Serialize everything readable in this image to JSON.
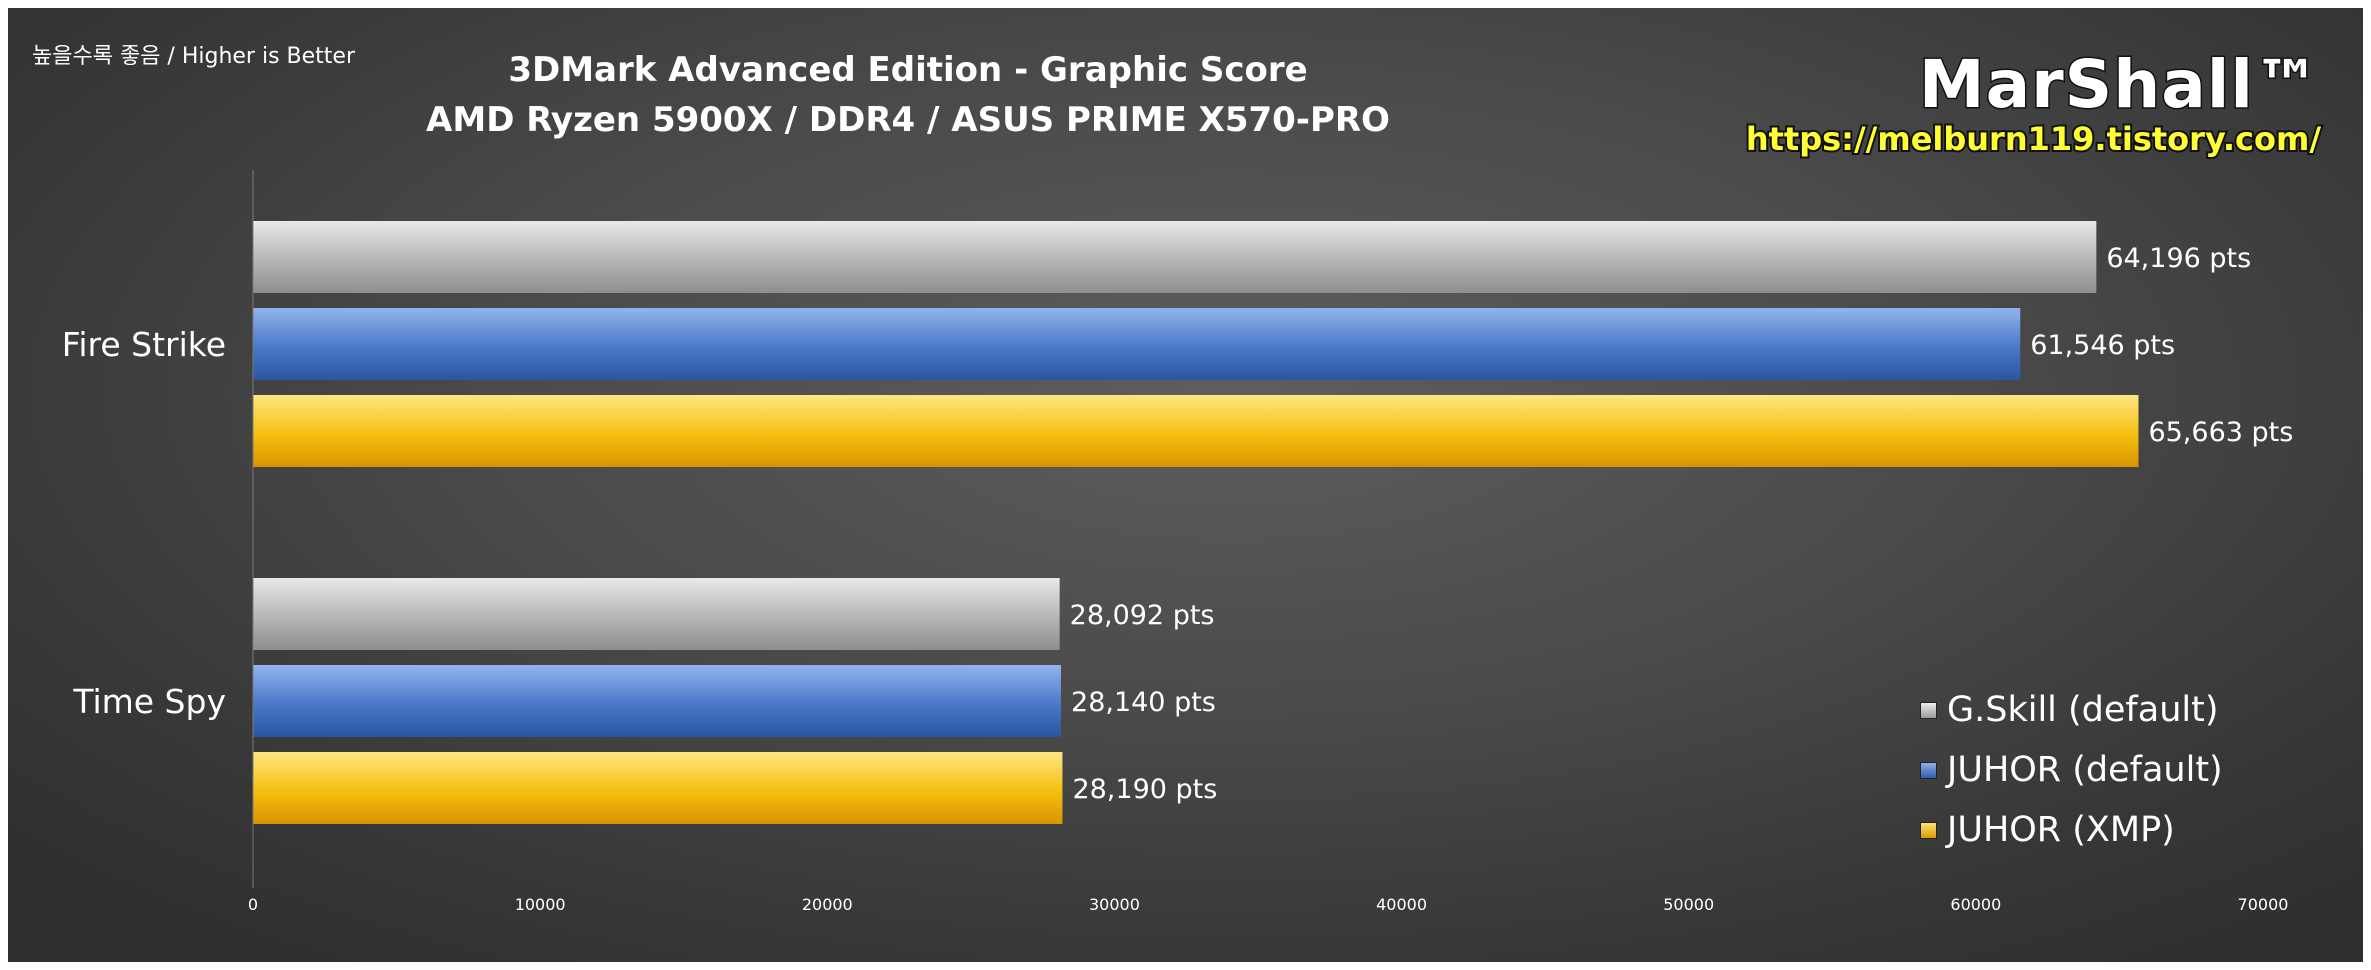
{
  "note": "높을수록 좋음 / Higher is Better",
  "brand": {
    "logo": "MarShall™",
    "url": "https://melburn119.tistory.com/"
  },
  "colors": {
    "gskill": "#bdbdbd",
    "juhor_default": "#4a78c8",
    "juhor_xmp": "#f2b800"
  },
  "chart_data": {
    "type": "bar",
    "orientation": "horizontal",
    "title": "3DMark Advanced Edition - Graphic Score",
    "subtitle": "AMD Ryzen 5900X / DDR4 / ASUS PRIME X570-PRO",
    "categories": [
      "Fire Strike",
      "Time Spy"
    ],
    "series": [
      {
        "name": "G.Skill (default)",
        "color": "#bdbdbd",
        "values": [
          64196,
          28092
        ]
      },
      {
        "name": "JUHOR (default)",
        "color": "#4a78c8",
        "values": [
          61546,
          28140
        ]
      },
      {
        "name": "JUHOR (XMP)",
        "color": "#f2b800",
        "values": [
          65663,
          28190
        ]
      }
    ],
    "value_suffix": "pts",
    "xlim": [
      0,
      70000
    ],
    "xticks": [
      0,
      10000,
      20000,
      30000,
      40000,
      50000,
      60000,
      70000
    ],
    "legend_position": "bottom-right",
    "grid": false
  }
}
